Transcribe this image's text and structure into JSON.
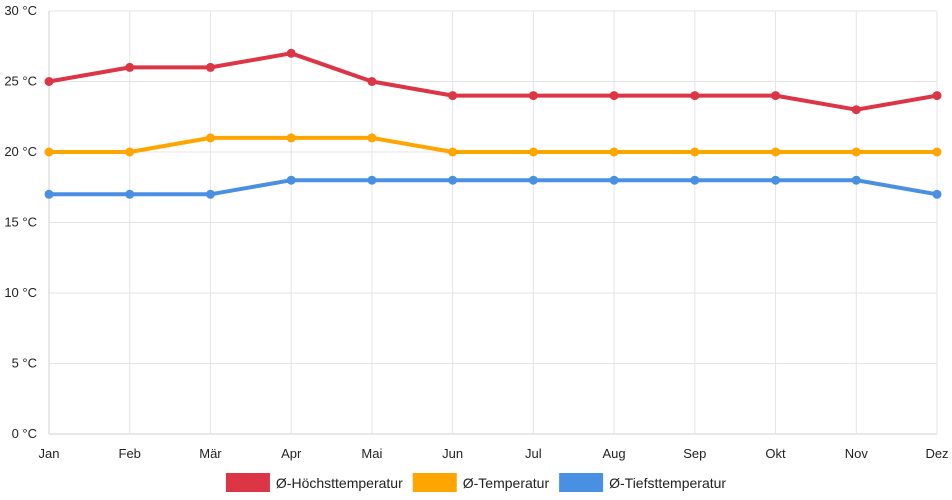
{
  "chart_data": {
    "type": "line",
    "title": "",
    "xlabel": "",
    "ylabel": "",
    "categories": [
      "Jan",
      "Feb",
      "Mär",
      "Apr",
      "Mai",
      "Jun",
      "Jul",
      "Aug",
      "Sep",
      "Okt",
      "Nov",
      "Dez"
    ],
    "ylim": [
      0,
      30
    ],
    "y_ticks": [
      0,
      5,
      10,
      15,
      20,
      25,
      30
    ],
    "y_unit": "°C",
    "grid": true,
    "legend_position": "bottom",
    "series": [
      {
        "name": "Ø-Höchsttemperatur",
        "color": "#dc3545",
        "values": [
          25,
          26,
          26,
          27,
          25,
          24,
          24,
          24,
          24,
          24,
          23,
          24
        ]
      },
      {
        "name": "Ø-Temperatur",
        "color": "#ffa500",
        "values": [
          20,
          20,
          21,
          21,
          21,
          20,
          20,
          20,
          20,
          20,
          20,
          20
        ]
      },
      {
        "name": "Ø-Tiefsttemperatur",
        "color": "#4a90e2",
        "values": [
          17,
          17,
          17,
          18,
          18,
          18,
          18,
          18,
          18,
          18,
          18,
          17
        ]
      }
    ]
  }
}
